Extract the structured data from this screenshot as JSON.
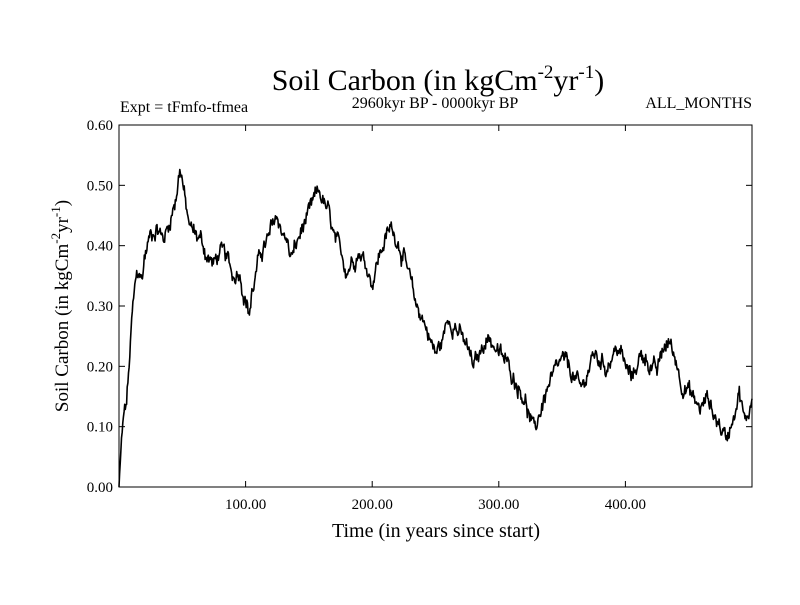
{
  "chart_data": {
    "type": "line",
    "title": "Soil Carbon (in kgCm",
    "title_sup1": "-2",
    "title_mid": "yr",
    "title_sup2": "-1",
    "title_end": ")",
    "subtitle": "2960kyr BP - 0000kyr BP",
    "left_label": "Expt = tFmfo-tfmea",
    "right_label": "ALL_MONTHS",
    "xlabel": "Time (in years since start)",
    "ylabel_main": "Soil Carbon (in kgCm",
    "ylabel_sup1": "-2",
    "ylabel_mid": "yr",
    "ylabel_sup2": "-1",
    "ylabel_end": ")",
    "xlim": [
      0,
      500
    ],
    "ylim": [
      0,
      0.6
    ],
    "x_ticks": [
      100,
      200,
      300,
      400
    ],
    "x_tick_labels": [
      "100.00",
      "200.00",
      "300.00",
      "400.00"
    ],
    "y_ticks": [
      0,
      0.1,
      0.2,
      0.3,
      0.4,
      0.5,
      0.6
    ],
    "y_tick_labels": [
      "0.00",
      "0.10",
      "0.20",
      "0.30",
      "0.40",
      "0.50",
      "0.60"
    ],
    "grid": false,
    "series": [
      {
        "name": "Soil Carbon",
        "color": "#000000",
        "x": [
          0,
          2,
          4,
          6,
          8,
          10,
          12,
          14,
          16,
          18,
          20,
          25,
          30,
          35,
          40,
          45,
          48,
          50,
          53,
          56,
          60,
          65,
          70,
          75,
          80,
          85,
          90,
          95,
          100,
          103,
          105,
          108,
          112,
          118,
          124,
          128,
          132,
          136,
          140,
          145,
          150,
          155,
          158,
          162,
          166,
          170,
          175,
          180,
          185,
          190,
          195,
          200,
          205,
          210,
          215,
          220,
          225,
          230,
          235,
          240,
          245,
          250,
          255,
          260,
          265,
          270,
          275,
          280,
          285,
          290,
          295,
          300,
          305,
          310,
          315,
          320,
          325,
          328,
          332,
          336,
          340,
          345,
          350,
          355,
          360,
          365,
          370,
          375,
          380,
          385,
          390,
          395,
          400,
          405,
          410,
          415,
          420,
          425,
          430,
          435,
          440,
          445,
          450,
          455,
          460,
          465,
          470,
          475,
          480,
          485,
          490,
          495,
          500
        ],
        "values": [
          0.0,
          0.08,
          0.12,
          0.14,
          0.2,
          0.27,
          0.32,
          0.35,
          0.36,
          0.34,
          0.38,
          0.42,
          0.43,
          0.41,
          0.44,
          0.48,
          0.53,
          0.51,
          0.46,
          0.43,
          0.42,
          0.41,
          0.38,
          0.37,
          0.39,
          0.38,
          0.35,
          0.36,
          0.31,
          0.29,
          0.32,
          0.35,
          0.39,
          0.41,
          0.45,
          0.43,
          0.41,
          0.38,
          0.4,
          0.43,
          0.45,
          0.48,
          0.49,
          0.47,
          0.45,
          0.41,
          0.39,
          0.36,
          0.38,
          0.39,
          0.37,
          0.34,
          0.38,
          0.41,
          0.43,
          0.41,
          0.38,
          0.34,
          0.3,
          0.28,
          0.25,
          0.22,
          0.24,
          0.28,
          0.27,
          0.25,
          0.23,
          0.2,
          0.22,
          0.25,
          0.24,
          0.22,
          0.21,
          0.19,
          0.17,
          0.15,
          0.11,
          0.09,
          0.12,
          0.15,
          0.17,
          0.19,
          0.21,
          0.2,
          0.18,
          0.16,
          0.19,
          0.22,
          0.21,
          0.2,
          0.22,
          0.23,
          0.2,
          0.18,
          0.21,
          0.22,
          0.2,
          0.19,
          0.23,
          0.24,
          0.21,
          0.17,
          0.16,
          0.14,
          0.13,
          0.15,
          0.12,
          0.1,
          0.08,
          0.12,
          0.16,
          0.1,
          0.15
        ]
      }
    ]
  }
}
